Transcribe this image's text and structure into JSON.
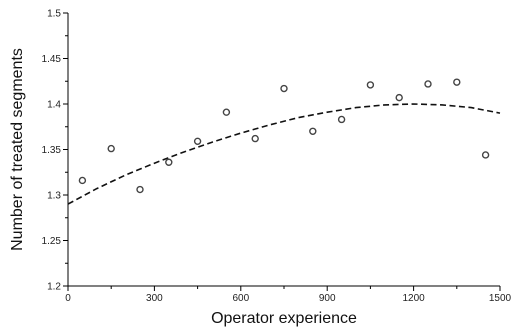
{
  "chart_data": {
    "type": "scatter",
    "xlabel": "Operator experience",
    "ylabel": "Number of treated segments",
    "xlim": [
      0,
      1500
    ],
    "ylim": [
      1.2,
      1.5
    ],
    "x_ticks": [
      0,
      300,
      600,
      900,
      1200,
      1500
    ],
    "x_tick_labels": [
      "0",
      "300",
      "600",
      "900",
      "1200",
      "1500"
    ],
    "y_ticks": [
      1.2,
      1.25,
      1.3,
      1.35,
      1.4,
      1.45,
      1.5
    ],
    "y_tick_labels": [
      "1.2",
      "1.25",
      "1.3",
      "1.35",
      "1.4",
      "1.45",
      "1.5"
    ],
    "grid": false,
    "series": [
      {
        "kind": "points",
        "x": [
          50,
          150,
          250,
          350,
          450,
          550,
          650,
          750,
          850,
          950,
          1050,
          1150,
          1250,
          1350,
          1450
        ],
        "y": [
          1.316,
          1.351,
          1.306,
          1.336,
          1.359,
          1.391,
          1.362,
          1.417,
          1.37,
          1.383,
          1.421,
          1.407,
          1.422,
          1.424,
          1.344
        ],
        "color": "#444444"
      },
      {
        "kind": "fit",
        "style": "dashed",
        "x": [
          0,
          100,
          200,
          300,
          400,
          500,
          600,
          700,
          800,
          900,
          1000,
          1100,
          1200,
          1300,
          1400,
          1500
        ],
        "y": [
          1.29,
          1.307,
          1.322,
          1.335,
          1.347,
          1.358,
          1.368,
          1.377,
          1.385,
          1.391,
          1.396,
          1.399,
          1.4,
          1.399,
          1.396,
          1.39
        ],
        "color": "#111111"
      }
    ]
  }
}
